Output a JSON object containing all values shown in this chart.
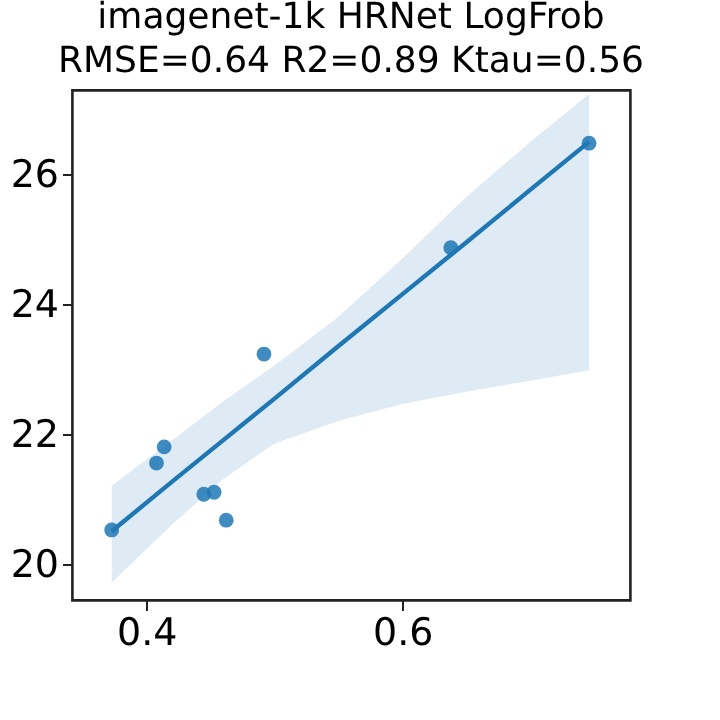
{
  "chart_data": {
    "type": "scatter",
    "title": [
      "imagenet-1k HRNet LogFrob",
      "RMSE=0.64  R2=0.89 Ktau=0.56"
    ],
    "xlim": [
      0.342,
      0.778
    ],
    "xticks": [
      0.4,
      0.6
    ],
    "ylim": [
      19.44,
      27.3
    ],
    "yticks": [
      20,
      22,
      24,
      26
    ],
    "grid": false,
    "series": [
      {
        "color": "#1f77b4",
        "marker": "circle",
        "x": [
          0.373,
          0.408,
          0.414,
          0.445,
          0.453,
          0.4625,
          0.492,
          0.638,
          0.746
        ],
        "values": [
          20.52,
          21.55,
          21.8,
          21.07,
          21.1,
          20.67,
          23.23,
          24.87,
          26.48
        ]
      },
      {
        "type": "line",
        "color": "#1f77b4",
        "x": [
          0.373,
          0.42,
          0.46,
          0.5,
          0.55,
          0.6,
          0.65,
          0.7,
          0.746
        ],
        "values": [
          20.5,
          21.26,
          21.9,
          22.54,
          23.35,
          24.15,
          24.95,
          25.76,
          26.5
        ],
        "lower": [
          19.71,
          20.6,
          21.3,
          21.85,
          22.2,
          22.46,
          22.65,
          22.82,
          22.98
        ],
        "upper": [
          21.2,
          21.9,
          22.5,
          23.05,
          23.8,
          24.7,
          25.65,
          26.5,
          27.24
        ]
      }
    ]
  }
}
